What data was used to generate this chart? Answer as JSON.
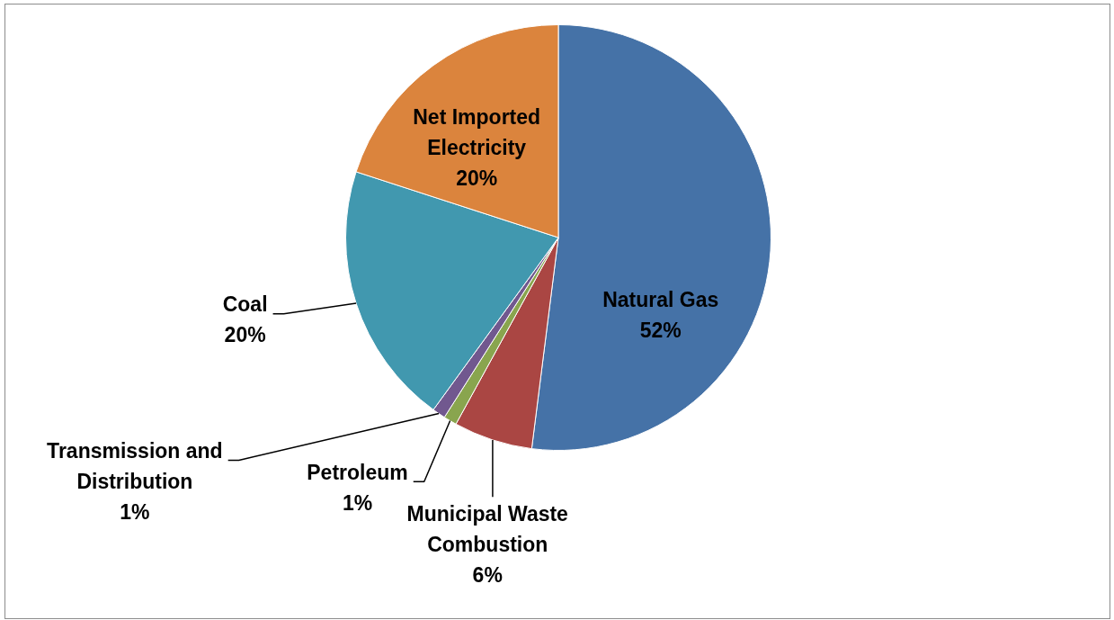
{
  "chart_data": {
    "type": "pie",
    "categories": [
      "Natural Gas",
      "Municipal Waste Combustion",
      "Petroleum",
      "Transmission and Distribution",
      "Coal",
      "Net Imported Electricity"
    ],
    "values": [
      52,
      6,
      1,
      1,
      20,
      20
    ],
    "colors": [
      "#4572a7",
      "#aa4643",
      "#89a54e",
      "#71588f",
      "#4198af",
      "#db843d"
    ],
    "value_labels": [
      "52%",
      "6%",
      "1%",
      "1%",
      "20%",
      "20%"
    ]
  }
}
